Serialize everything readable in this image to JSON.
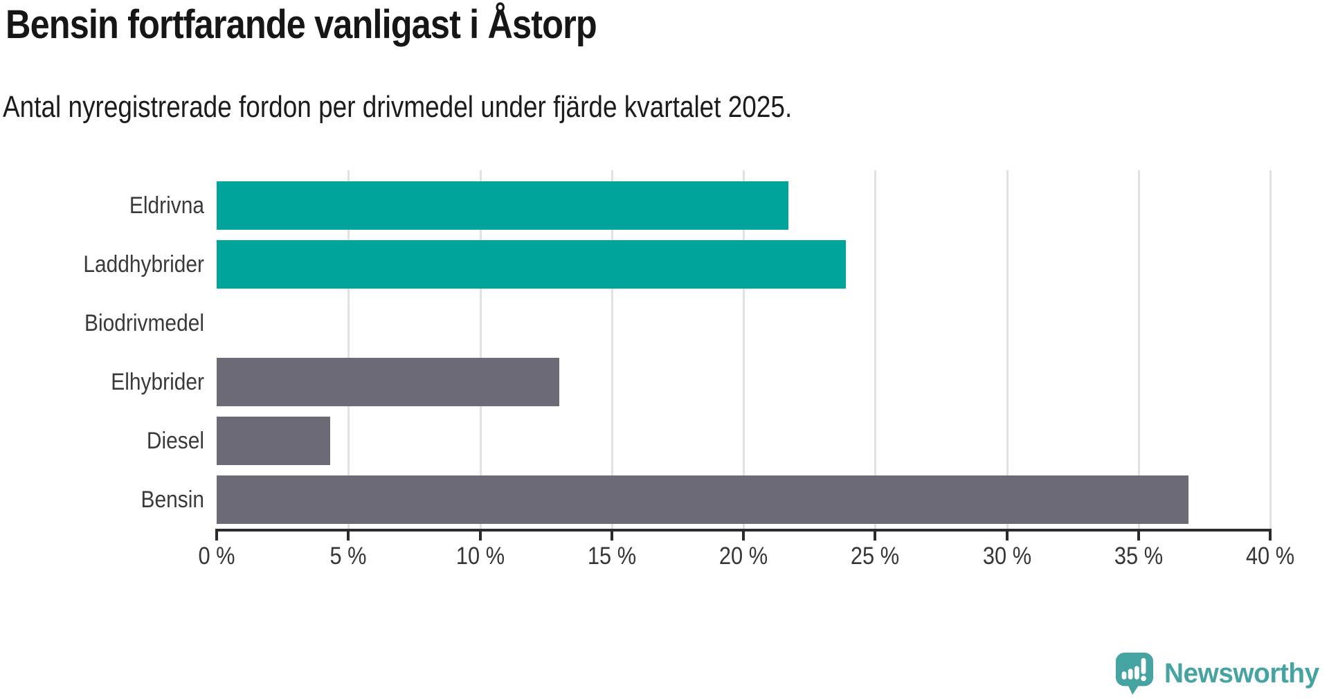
{
  "header": {
    "title": "Bensin fortfarande vanligast i Åstorp",
    "subtitle": "Antal nyregistrerade fordon per drivmedel under fjärde kvartalet 2025."
  },
  "chart_data": {
    "type": "bar",
    "orientation": "horizontal",
    "title": "Bensin fortfarande vanligast i Åstorp",
    "subtitle": "Antal nyregistrerade fordon per drivmedel under fjärde kvartalet 2025.",
    "categories": [
      "Eldrivna",
      "Laddhybrider",
      "Biodrivmedel",
      "Elhybrider",
      "Diesel",
      "Bensin"
    ],
    "values": [
      21.7,
      23.9,
      0,
      13.0,
      4.3,
      36.9
    ],
    "unit": "%",
    "xlabel": "",
    "ylabel": "",
    "xlim": [
      0,
      40
    ],
    "x_tick_step": 5,
    "x_tick_labels": [
      "0 %",
      "5 %",
      "10 %",
      "15 %",
      "20 %",
      "25 %",
      "30 %",
      "35 %",
      "40 %"
    ],
    "grid": true,
    "legend": false,
    "bar_colors": [
      "#00a49b",
      "#00a49b",
      "#6c6a74",
      "#6c6a74",
      "#6c6a74",
      "#6c6a74"
    ]
  },
  "branding": {
    "wordmark": "Newsworthy",
    "brand_color": "#45a3a1"
  },
  "colors": {
    "background": "#ffffff",
    "teal_bar": "#00a49b",
    "gray_bar": "#6c6a74",
    "gridline": "#e1e1e1",
    "axis": "#2b2b2b",
    "title_text": "#161616",
    "label_text": "#3a3a3a"
  }
}
